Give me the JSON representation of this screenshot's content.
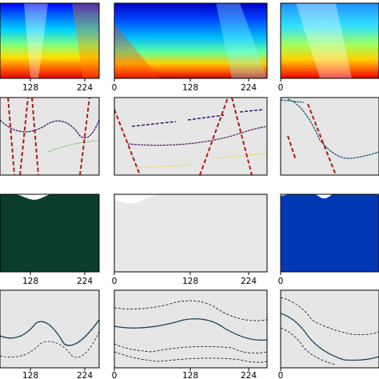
{
  "figure": {
    "column_ticks": [
      [
        "128",
        "224"
      ],
      [
        "0",
        "128",
        "224"
      ],
      [
        "0"
      ]
    ],
    "row_kinds": [
      "velocity-map",
      "line-panel",
      "layer-map",
      "line-panel"
    ],
    "colors": {
      "panel_bg": "#e6e6e6",
      "red_dashed": "#b01a12",
      "black_dashed": "#222222",
      "layer_palette": [
        "#0a3d2a",
        "#1f6e3a",
        "#3aa24c",
        "#e8e8e8",
        "#7fd0ff",
        "#1c8cff",
        "#0039b3",
        "#a8a8ff",
        "#ff00ff",
        "#ff9cc8",
        "#9a3aa8",
        "#ffd400",
        "#5c1f8c",
        "#2e8b57",
        "#ff5a00",
        "#ffffff",
        "#3f3f3f",
        "#8b6b3a",
        "#ff9eb5",
        "#1a1a1a",
        "#00c2c2",
        "#7a1f1f",
        "#c8a0ff",
        "#556b2f",
        "#d2691e"
      ],
      "jet_stops": [
        "#00007f",
        "#0000ff",
        "#007fff",
        "#00ffff",
        "#7fff7f",
        "#ffff00",
        "#ff7f00",
        "#ff0000",
        "#7f0000"
      ]
    }
  }
}
